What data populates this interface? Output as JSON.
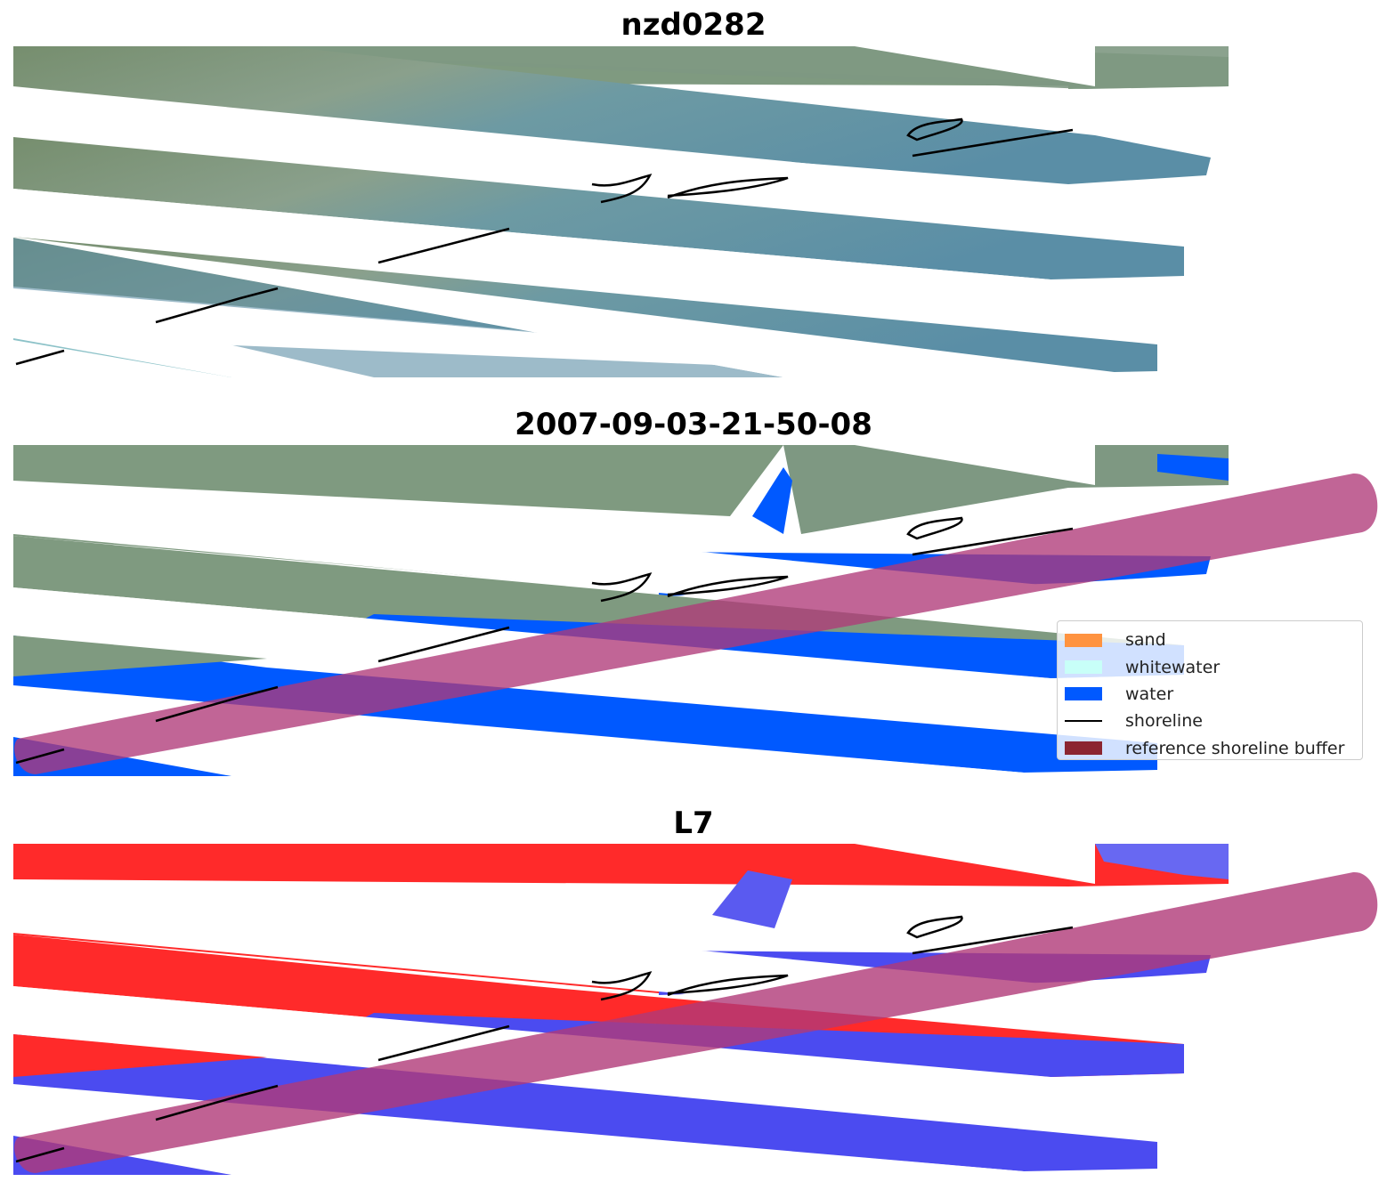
{
  "titles": {
    "panel1": "nzd0282",
    "panel2": "2007-09-03-21-50-08",
    "panel3": "L7"
  },
  "legend": {
    "items": [
      {
        "label": "sand",
        "color": "#ff9340",
        "kind": "patch"
      },
      {
        "label": "whitewater",
        "color": "#c8fff8",
        "kind": "patch"
      },
      {
        "label": "water",
        "color": "#0059ff",
        "kind": "patch"
      },
      {
        "label": "shoreline",
        "color": "#000000",
        "kind": "line"
      },
      {
        "label": "reference shoreline buffer",
        "color": "#8b2530",
        "kind": "patch"
      }
    ]
  },
  "colors": {
    "land_rgb": "#7f9a83",
    "water_rgb": "#5a8ea6",
    "water_class": "#0059ff",
    "buffer": "#b03a78",
    "index_land": "#ff2020",
    "index_water": "#4b4bf0"
  }
}
